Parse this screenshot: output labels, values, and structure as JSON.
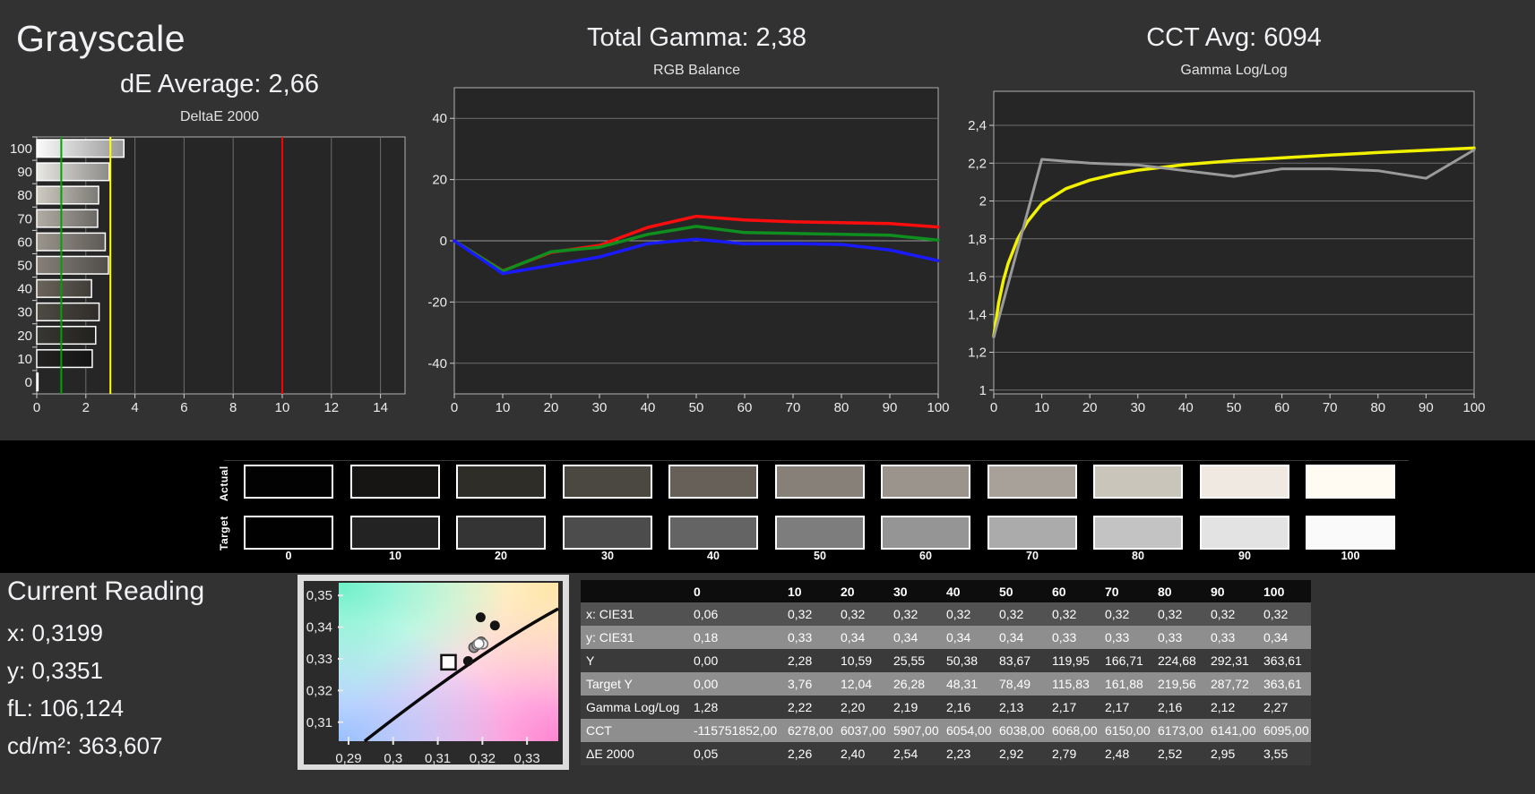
{
  "titles": {
    "grayscale": "Grayscale",
    "de_average": "dE Average: 2,66",
    "total_gamma": "Total Gamma: 2,38",
    "cct_avg": "CCT Avg: 6094"
  },
  "chart_data": [
    {
      "type": "bar",
      "orientation": "horizontal",
      "title": "DeltaE 2000",
      "categories": [
        "100",
        "90",
        "80",
        "70",
        "60",
        "50",
        "40",
        "30",
        "20",
        "10",
        "0"
      ],
      "values": [
        3.55,
        2.95,
        2.52,
        2.48,
        2.79,
        2.92,
        2.23,
        2.54,
        2.4,
        2.26,
        0.05
      ],
      "bar_colors": [
        "#fbfbfb",
        "#e9e7e3",
        "#cfcbc3",
        "#b3ada6",
        "#9b958d",
        "#868079",
        "#6a645c",
        "#4e4a44",
        "#383732",
        "#232221",
        "#0c0c0c"
      ],
      "xlim": [
        0,
        15
      ],
      "xticks": [
        0,
        2,
        4,
        6,
        8,
        10,
        12,
        14
      ],
      "reference_lines": [
        {
          "name": "good-limit",
          "value": 1,
          "color": "#00a400"
        },
        {
          "name": "warning-limit",
          "value": 3,
          "color": "#ffff00"
        },
        {
          "name": "error-limit",
          "value": 10,
          "color": "#ff0000"
        }
      ],
      "grid": true,
      "plot_bg": "#262626",
      "border_color": "#b0b0b0",
      "grid_color": "#6e6e6e"
    },
    {
      "type": "line",
      "title": "RGB Balance",
      "x": [
        0,
        10,
        20,
        30,
        40,
        50,
        60,
        70,
        80,
        90,
        100
      ],
      "series": [
        {
          "name": "red-balance",
          "color": "#fb0d0d",
          "width": 3.5,
          "values": [
            0,
            -9.8,
            -3.8,
            -1.5,
            4.4,
            8.0,
            6.8,
            6.2,
            5.9,
            5.6,
            4.5
          ]
        },
        {
          "name": "green-balance",
          "color": "#0e8f1e",
          "width": 3.5,
          "values": [
            0,
            -9.9,
            -3.6,
            -2.1,
            2.1,
            4.7,
            2.7,
            2.4,
            2.1,
            1.8,
            0.2
          ]
        },
        {
          "name": "blue-balance",
          "color": "#1a1aff",
          "width": 3.5,
          "values": [
            0,
            -10.7,
            -8.0,
            -5.3,
            -0.9,
            0.5,
            -1.0,
            -0.9,
            -1.2,
            -3.0,
            -6.5
          ]
        }
      ],
      "ylim": [
        -50,
        50
      ],
      "yticks": [
        {
          "v": 40,
          "label": "40"
        },
        {
          "v": 20,
          "label": "20"
        },
        {
          "v": 0,
          "label": "0",
          "bright": true
        },
        {
          "v": -20,
          "label": "-20"
        },
        {
          "v": -40,
          "label": "-40"
        }
      ],
      "xticks": [
        {
          "v": 0,
          "label": "0"
        },
        {
          "v": 10,
          "label": "10"
        },
        {
          "v": 20,
          "label": "20"
        },
        {
          "v": 30,
          "label": "30"
        },
        {
          "v": 40,
          "label": "40"
        },
        {
          "v": 50,
          "label": "50"
        },
        {
          "v": 60,
          "label": "60"
        },
        {
          "v": 70,
          "label": "70"
        },
        {
          "v": 80,
          "label": "80"
        },
        {
          "v": 90,
          "label": "90"
        },
        {
          "v": 100,
          "label": "100"
        }
      ],
      "plot_bg": "#262626",
      "border_color": "#b0b0b0",
      "grid_color": "#6e6e6e"
    },
    {
      "type": "line",
      "title": "Gamma Log/Log",
      "x": [
        0,
        10,
        20,
        30,
        40,
        50,
        60,
        70,
        80,
        90,
        100
      ],
      "series": [
        {
          "name": "target-gamma",
          "color": "#f2f200",
          "width": 3.5,
          "x": [
            0,
            1,
            2,
            3,
            5,
            7,
            10,
            15,
            20,
            25,
            30,
            40,
            50,
            60,
            70,
            80,
            90,
            100
          ],
          "values": [
            1.285,
            1.46,
            1.58,
            1.67,
            1.8,
            1.89,
            1.985,
            2.065,
            2.11,
            2.14,
            2.163,
            2.193,
            2.213,
            2.228,
            2.243,
            2.256,
            2.268,
            2.28
          ]
        },
        {
          "name": "measured-gamma",
          "color": "#9a9a9a",
          "width": 3,
          "values": [
            1.28,
            2.22,
            2.2,
            2.19,
            2.16,
            2.13,
            2.17,
            2.17,
            2.16,
            2.12,
            2.27
          ]
        }
      ],
      "ylim": [
        0.98,
        2.58
      ],
      "yticks": [
        {
          "v": 2.4,
          "label": "2,4"
        },
        {
          "v": 2.2,
          "label": "2,2"
        },
        {
          "v": 2.0,
          "label": "2"
        },
        {
          "v": 1.8,
          "label": "1,8"
        },
        {
          "v": 1.6,
          "label": "1,6"
        },
        {
          "v": 1.4,
          "label": "1,4"
        },
        {
          "v": 1.2,
          "label": "1,2"
        },
        {
          "v": 1.0,
          "label": "1"
        }
      ],
      "xticks": [
        {
          "v": 0,
          "label": "0"
        },
        {
          "v": 10,
          "label": "10"
        },
        {
          "v": 20,
          "label": "20"
        },
        {
          "v": 30,
          "label": "30"
        },
        {
          "v": 40,
          "label": "40"
        },
        {
          "v": 50,
          "label": "50"
        },
        {
          "v": 60,
          "label": "60"
        },
        {
          "v": 70,
          "label": "70"
        },
        {
          "v": 80,
          "label": "80"
        },
        {
          "v": 90,
          "label": "90"
        },
        {
          "v": 100,
          "label": "100"
        }
      ],
      "plot_bg": "#262626",
      "border_color": "#b0b0b0",
      "grid_color": "#6e6e6e"
    },
    {
      "type": "scatter",
      "title": "CIE xy chromaticity detail",
      "xlim": [
        0.2878,
        0.337
      ],
      "ylim": [
        0.304,
        0.354
      ],
      "xticks": [
        {
          "v": 0.29,
          "label": "0,29"
        },
        {
          "v": 0.3,
          "label": "0,3"
        },
        {
          "v": 0.31,
          "label": "0,31"
        },
        {
          "v": 0.32,
          "label": "0,32"
        },
        {
          "v": 0.33,
          "label": "0,33"
        }
      ],
      "yticks": [
        {
          "v": 0.35,
          "label": "0,35"
        },
        {
          "v": 0.34,
          "label": "0,34"
        },
        {
          "v": 0.33,
          "label": "0,33"
        },
        {
          "v": 0.32,
          "label": "0,32"
        },
        {
          "v": 0.31,
          "label": "0,31"
        }
      ],
      "target_square": {
        "x": 0.3124,
        "y": 0.3289
      },
      "locus_curve": {
        "start": [
          0.2936,
          0.304
        ],
        "control": [
          0.319,
          0.332
        ],
        "end": [
          0.337,
          0.3458
        ],
        "color": "#0a0a0a"
      },
      "points_black": [
        {
          "x": 0.3196,
          "y": 0.3431
        },
        {
          "x": 0.3228,
          "y": 0.3405
        },
        {
          "x": 0.3168,
          "y": 0.3293
        }
      ],
      "points_cluster": [
        {
          "x": 0.3181,
          "y": 0.3336,
          "fill": "#9a9a9a",
          "stroke": "#4a4a4a"
        },
        {
          "x": 0.3188,
          "y": 0.3344,
          "fill": "#c4c4c4",
          "stroke": "#5a5a5a"
        },
        {
          "x": 0.3197,
          "y": 0.3353,
          "fill": "#8f8f8f",
          "stroke": "#4a4a4a"
        },
        {
          "x": 0.3201,
          "y": 0.3347,
          "fill": "#e8e8e8",
          "stroke": "#6a6a6a"
        },
        {
          "x": 0.3192,
          "y": 0.3348,
          "fill": "#ffffff",
          "stroke": "#7a7a7a"
        }
      ]
    }
  ],
  "swatches": {
    "row_labels": [
      "Actual",
      "Target"
    ],
    "labels": [
      "0",
      "10",
      "20",
      "30",
      "40",
      "50",
      "60",
      "70",
      "80",
      "90",
      "100"
    ],
    "actual_colors": [
      "#020202",
      "#161514",
      "#2e2d28",
      "#4b4842",
      "#676059",
      "#868079",
      "#9b948c",
      "#a7a199",
      "#c9c5bb",
      "#efe9e1",
      "#fffaf2"
    ],
    "target_colors": [
      "#010101",
      "#232323",
      "#343434",
      "#4c4c4c",
      "#646464",
      "#7d7d7d",
      "#959595",
      "#ababab",
      "#c3c3c3",
      "#e3e3e3",
      "#fafafa"
    ]
  },
  "current_reading": {
    "title": "Current Reading",
    "items": [
      {
        "label": "x",
        "value": "0,3199"
      },
      {
        "label": "y",
        "value": "0,3351"
      },
      {
        "label": "fL",
        "value": "106,124"
      },
      {
        "label": "cd/m²",
        "value": "363,607"
      }
    ]
  },
  "table": {
    "col_headers": [
      "",
      "0",
      "10",
      "20",
      "30",
      "40",
      "50",
      "60",
      "70",
      "80",
      "90",
      "100"
    ],
    "rows": [
      {
        "label": "x: CIE31",
        "bg": "#525252",
        "values": [
          "0,06",
          "0,32",
          "0,32",
          "0,32",
          "0,32",
          "0,32",
          "0,32",
          "0,32",
          "0,32",
          "0,32",
          "0,32"
        ]
      },
      {
        "label": "y: CIE31",
        "bg": "#8e8e8e",
        "values": [
          "0,18",
          "0,33",
          "0,34",
          "0,34",
          "0,34",
          "0,34",
          "0,33",
          "0,33",
          "0,33",
          "0,33",
          "0,34"
        ]
      },
      {
        "label": "Y",
        "bg": "#3a3a3a",
        "values": [
          "0,00",
          "2,28",
          "10,59",
          "25,55",
          "50,38",
          "83,67",
          "119,95",
          "166,71",
          "224,68",
          "292,31",
          "363,61"
        ]
      },
      {
        "label": "Target Y",
        "bg": "#8e8e8e",
        "values": [
          "0,00",
          "3,76",
          "12,04",
          "26,28",
          "48,31",
          "78,49",
          "115,83",
          "161,88",
          "219,56",
          "287,72",
          "363,61"
        ]
      },
      {
        "label": "Gamma Log/Log",
        "bg": "#3a3a3a",
        "values": [
          "1,28",
          "2,22",
          "2,20",
          "2,19",
          "2,16",
          "2,13",
          "2,17",
          "2,17",
          "2,16",
          "2,12",
          "2,27"
        ]
      },
      {
        "label": "CCT",
        "bg": "#8e8e8e",
        "values": [
          "-115751852,00",
          "6278,00",
          "6037,00",
          "5907,00",
          "6054,00",
          "6038,00",
          "6068,00",
          "6150,00",
          "6173,00",
          "6141,00",
          "6095,00"
        ]
      },
      {
        "label": "ΔE 2000",
        "bg": "#3a3a3a",
        "values": [
          "0,05",
          "2,26",
          "2,40",
          "2,54",
          "2,23",
          "2,92",
          "2,79",
          "2,48",
          "2,52",
          "2,95",
          "3,55"
        ]
      }
    ]
  },
  "colors": {
    "page_bg": "#323232",
    "band_bg": "#000000",
    "header_row_bg": "#0d0d0d",
    "cie_frame": "#dcdcdc",
    "cie_inner": "#2b2b2b"
  }
}
